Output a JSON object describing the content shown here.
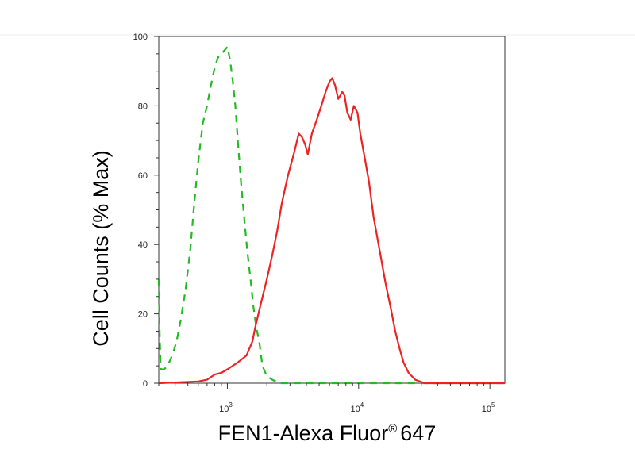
{
  "chart_data": {
    "type": "line",
    "xlabel": "FEN1-Alexa Fluor",
    "xlabel_sup": "®",
    "xlabel_suffix": "647",
    "ylabel": "Cell Counts (% Max)",
    "x_scale": "log",
    "xlim": [
      300,
      130000
    ],
    "ylim": [
      0,
      100
    ],
    "y_ticks": [
      0,
      20,
      40,
      60,
      80,
      100
    ],
    "x_major_ticks": [
      {
        "value": 1000,
        "base": "10",
        "exp": "3"
      },
      {
        "value": 10000,
        "base": "10",
        "exp": "4"
      },
      {
        "value": 100000,
        "base": "10",
        "exp": "5"
      }
    ],
    "grid": false,
    "legend": "none",
    "series": [
      {
        "color": "#22bb22",
        "style": "dashed",
        "points": [
          [
            300,
            30
          ],
          [
            305,
            14
          ],
          [
            310,
            4
          ],
          [
            330,
            4
          ],
          [
            350,
            5
          ],
          [
            380,
            8
          ],
          [
            410,
            12
          ],
          [
            440,
            18
          ],
          [
            480,
            27
          ],
          [
            520,
            38
          ],
          [
            560,
            52
          ],
          [
            600,
            64
          ],
          [
            650,
            75
          ],
          [
            700,
            80
          ],
          [
            750,
            86
          ],
          [
            800,
            91
          ],
          [
            850,
            94
          ],
          [
            900,
            95
          ],
          [
            950,
            96
          ],
          [
            1000,
            97
          ],
          [
            1050,
            93
          ],
          [
            1100,
            87
          ],
          [
            1150,
            80
          ],
          [
            1200,
            70
          ],
          [
            1270,
            58
          ],
          [
            1340,
            48
          ],
          [
            1420,
            38
          ],
          [
            1500,
            30
          ],
          [
            1580,
            22
          ],
          [
            1660,
            16
          ],
          [
            1750,
            12
          ],
          [
            1850,
            5
          ],
          [
            2000,
            2
          ],
          [
            2200,
            1
          ],
          [
            2500,
            0
          ],
          [
            3000,
            0
          ],
          [
            5000,
            0
          ],
          [
            10000,
            0
          ],
          [
            30000,
            0
          ],
          [
            130000,
            0
          ]
        ]
      },
      {
        "color": "#ee2222",
        "style": "solid",
        "points": [
          [
            300,
            0
          ],
          [
            600,
            0.5
          ],
          [
            700,
            1
          ],
          [
            800,
            2.5
          ],
          [
            900,
            3
          ],
          [
            1000,
            4
          ],
          [
            1200,
            6
          ],
          [
            1400,
            8
          ],
          [
            1550,
            12
          ],
          [
            1650,
            17
          ],
          [
            1800,
            23
          ],
          [
            2000,
            30
          ],
          [
            2200,
            37
          ],
          [
            2400,
            44
          ],
          [
            2600,
            52
          ],
          [
            2900,
            60
          ],
          [
            3200,
            66
          ],
          [
            3500,
            72
          ],
          [
            3700,
            71
          ],
          [
            3900,
            69
          ],
          [
            4100,
            66
          ],
          [
            4400,
            72
          ],
          [
            4800,
            76
          ],
          [
            5200,
            80
          ],
          [
            5600,
            84
          ],
          [
            6000,
            87
          ],
          [
            6300,
            88
          ],
          [
            6600,
            86
          ],
          [
            7000,
            82
          ],
          [
            7500,
            84
          ],
          [
            7800,
            83
          ],
          [
            8200,
            78
          ],
          [
            8700,
            76
          ],
          [
            9200,
            80
          ],
          [
            9800,
            78
          ],
          [
            10300,
            72
          ],
          [
            11000,
            66
          ],
          [
            12000,
            58
          ],
          [
            13000,
            48
          ],
          [
            14500,
            38
          ],
          [
            16000,
            29
          ],
          [
            17500,
            22
          ],
          [
            19000,
            15
          ],
          [
            20500,
            10
          ],
          [
            22000,
            6
          ],
          [
            24000,
            3
          ],
          [
            27000,
            1
          ],
          [
            32000,
            0
          ],
          [
            130000,
            0
          ]
        ]
      }
    ]
  }
}
